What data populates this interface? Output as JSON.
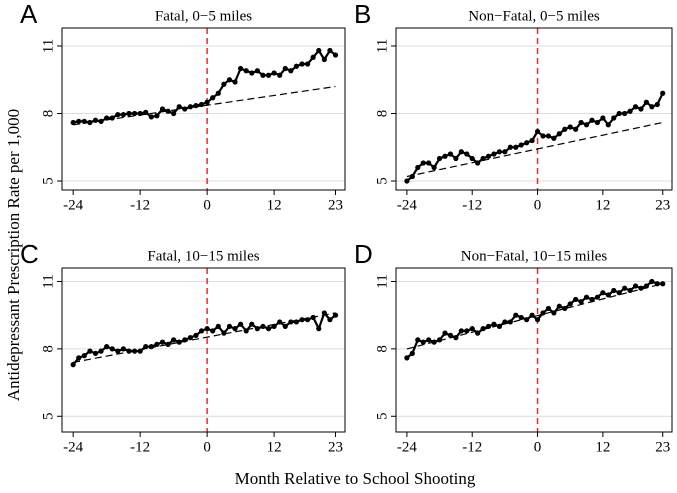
{
  "ylabel": "Antidepressant Prescription Rate per 1,000",
  "xlabel": "Month Relative to School Shooting",
  "chart_data": [
    {
      "type": "line",
      "panel": "A",
      "title": "Fatal, 0−5 miles",
      "vline": 0,
      "vline_color": "#e03030",
      "grid": true,
      "x": [
        -24,
        -23,
        -22,
        -21,
        -20,
        -19,
        -18,
        -17,
        -16,
        -15,
        -14,
        -13,
        -12,
        -11,
        -10,
        -9,
        -8,
        -7,
        -6,
        -5,
        -4,
        -3,
        -2,
        -1,
        0,
        1,
        2,
        3,
        4,
        5,
        6,
        7,
        8,
        9,
        10,
        11,
        12,
        13,
        14,
        15,
        16,
        17,
        18,
        19,
        20,
        21,
        22,
        23
      ],
      "xlim": [
        -26,
        24.7
      ],
      "xticks": [
        -24,
        -12,
        0,
        12,
        23
      ],
      "ylim": [
        4.6,
        11.8
      ],
      "yticks": [
        5,
        8,
        11
      ],
      "series": [
        {
          "color": "#000000",
          "values": [
            7.6,
            7.65,
            7.65,
            7.6,
            7.7,
            7.65,
            7.8,
            7.8,
            7.95,
            7.95,
            8.0,
            8.0,
            8.0,
            8.05,
            7.85,
            7.9,
            8.2,
            8.1,
            8.0,
            8.3,
            8.2,
            8.3,
            8.35,
            8.4,
            8.5,
            8.7,
            8.9,
            9.3,
            9.5,
            9.4,
            10.0,
            9.9,
            9.8,
            9.9,
            9.7,
            9.7,
            9.8,
            9.7,
            10.0,
            9.9,
            10.1,
            10.2,
            10.2,
            10.5,
            10.8,
            10.4,
            10.8,
            10.6
          ]
        },
        {
          "color": "#000000",
          "dashed": true,
          "x": [
            -24,
            23
          ],
          "values": [
            7.5,
            9.2
          ]
        }
      ]
    },
    {
      "type": "line",
      "panel": "B",
      "title": "Non−Fatal, 0−5 miles",
      "vline": 0,
      "vline_color": "#e03030",
      "grid": true,
      "x": [
        -24,
        -23,
        -22,
        -21,
        -20,
        -19,
        -18,
        -17,
        -16,
        -15,
        -14,
        -13,
        -12,
        -11,
        -10,
        -9,
        -8,
        -7,
        -6,
        -5,
        -4,
        -3,
        -2,
        -1,
        0,
        1,
        2,
        3,
        4,
        5,
        6,
        7,
        8,
        9,
        10,
        11,
        12,
        13,
        14,
        15,
        16,
        17,
        18,
        19,
        20,
        21,
        22,
        23
      ],
      "xlim": [
        -26,
        24.7
      ],
      "xticks": [
        -24,
        -12,
        0,
        12,
        23
      ],
      "ylim": [
        4.6,
        11.8
      ],
      "yticks": [
        5,
        8,
        11
      ],
      "series": [
        {
          "color": "#000000",
          "values": [
            5.0,
            5.2,
            5.6,
            5.8,
            5.8,
            5.6,
            6.0,
            6.1,
            6.2,
            6.0,
            6.3,
            6.2,
            6.0,
            5.8,
            6.0,
            6.1,
            6.2,
            6.3,
            6.3,
            6.5,
            6.5,
            6.6,
            6.7,
            6.8,
            7.2,
            7.0,
            7.0,
            6.9,
            7.1,
            7.3,
            7.4,
            7.3,
            7.6,
            7.5,
            7.7,
            7.6,
            7.8,
            7.5,
            7.8,
            8.0,
            8.0,
            8.1,
            8.3,
            8.2,
            8.5,
            8.3,
            8.4,
            8.9
          ]
        },
        {
          "color": "#000000",
          "dashed": true,
          "x": [
            -24,
            23
          ],
          "values": [
            5.2,
            7.6
          ]
        }
      ]
    },
    {
      "type": "line",
      "panel": "C",
      "title": "Fatal, 10−15 miles",
      "vline": 0,
      "vline_color": "#e03030",
      "grid": true,
      "x": [
        -24,
        -23,
        -22,
        -21,
        -20,
        -19,
        -18,
        -17,
        -16,
        -15,
        -14,
        -13,
        -12,
        -11,
        -10,
        -9,
        -8,
        -7,
        -6,
        -5,
        -4,
        -3,
        -2,
        -1,
        0,
        1,
        2,
        3,
        4,
        5,
        6,
        7,
        8,
        9,
        10,
        11,
        12,
        13,
        14,
        15,
        16,
        17,
        18,
        19,
        20,
        21,
        22,
        23
      ],
      "xlim": [
        -26,
        24.7
      ],
      "xticks": [
        -24,
        -12,
        0,
        12,
        23
      ],
      "ylim": [
        4.3,
        11.6
      ],
      "yticks": [
        5,
        8,
        11
      ],
      "series": [
        {
          "color": "#000000",
          "values": [
            7.3,
            7.6,
            7.7,
            7.9,
            7.8,
            7.9,
            8.1,
            8.0,
            7.9,
            8.0,
            7.9,
            7.9,
            7.9,
            8.1,
            8.1,
            8.2,
            8.3,
            8.2,
            8.4,
            8.3,
            8.4,
            8.5,
            8.6,
            8.8,
            8.9,
            8.8,
            9.0,
            8.7,
            9.0,
            8.9,
            9.1,
            8.8,
            9.1,
            8.9,
            9.0,
            8.9,
            9.0,
            9.2,
            9.0,
            9.2,
            9.2,
            9.3,
            9.3,
            9.4,
            8.9,
            9.6,
            9.3,
            9.5
          ]
        },
        {
          "color": "#000000",
          "dashed": true,
          "x": [
            -24,
            23
          ],
          "values": [
            7.4,
            9.6
          ]
        }
      ]
    },
    {
      "type": "line",
      "panel": "D",
      "title": "Non−Fatal, 10−15 miles",
      "vline": 0,
      "vline_color": "#e03030",
      "grid": true,
      "x": [
        -24,
        -23,
        -22,
        -21,
        -20,
        -19,
        -18,
        -17,
        -16,
        -15,
        -14,
        -13,
        -12,
        -11,
        -10,
        -9,
        -8,
        -7,
        -6,
        -5,
        -4,
        -3,
        -2,
        -1,
        0,
        1,
        2,
        3,
        4,
        5,
        6,
        7,
        8,
        9,
        10,
        11,
        12,
        13,
        14,
        15,
        16,
        17,
        18,
        19,
        20,
        21,
        22,
        23
      ],
      "xlim": [
        -26,
        24.7
      ],
      "xticks": [
        -24,
        -12,
        0,
        12,
        23
      ],
      "ylim": [
        4.3,
        11.6
      ],
      "yticks": [
        5,
        8,
        11
      ],
      "series": [
        {
          "color": "#000000",
          "values": [
            7.6,
            7.8,
            8.4,
            8.3,
            8.4,
            8.3,
            8.4,
            8.7,
            8.6,
            8.5,
            8.8,
            8.8,
            8.9,
            8.7,
            8.9,
            9.0,
            9.1,
            9.0,
            9.2,
            9.2,
            9.5,
            9.4,
            9.3,
            9.5,
            9.3,
            9.6,
            9.8,
            9.6,
            9.9,
            9.8,
            10.0,
            10.2,
            10.1,
            10.3,
            10.2,
            10.3,
            10.5,
            10.4,
            10.6,
            10.5,
            10.7,
            10.6,
            10.8,
            10.7,
            10.8,
            11.0,
            10.9,
            10.9
          ]
        },
        {
          "color": "#000000",
          "dashed": true,
          "x": [
            -24,
            23
          ],
          "values": [
            8.0,
            10.9
          ]
        }
      ]
    }
  ]
}
